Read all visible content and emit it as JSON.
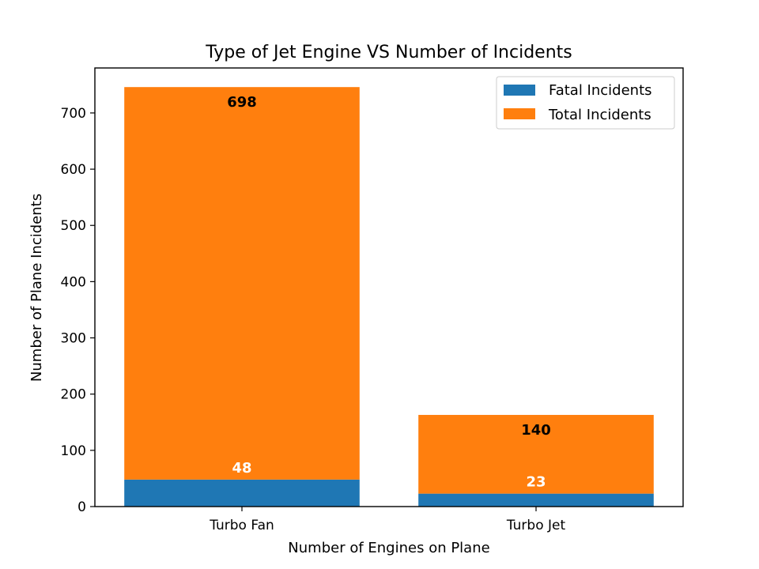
{
  "chart_data": {
    "type": "bar",
    "stacked": true,
    "title": "Type of Jet Engine VS Number of Incidents",
    "xlabel": "Number of Engines on Plane",
    "ylabel": "Number of Plane Incidents",
    "categories": [
      "Turbo Fan",
      "Turbo Jet"
    ],
    "ylim": [
      0,
      780
    ],
    "yticks": [
      0,
      100,
      200,
      300,
      400,
      500,
      600,
      700
    ],
    "grid": false,
    "legend_position": "top-right",
    "series": [
      {
        "name": "Fatal Incidents",
        "color": "#1f77b4",
        "values": [
          48,
          23
        ],
        "labels": [
          "48",
          "23"
        ],
        "label_color": "#ffffff"
      },
      {
        "name": "Total Incidents",
        "color": "#ff7f0e",
        "values": [
          698,
          140
        ],
        "labels": [
          "698",
          "140"
        ],
        "label_color": "#000000"
      }
    ]
  }
}
